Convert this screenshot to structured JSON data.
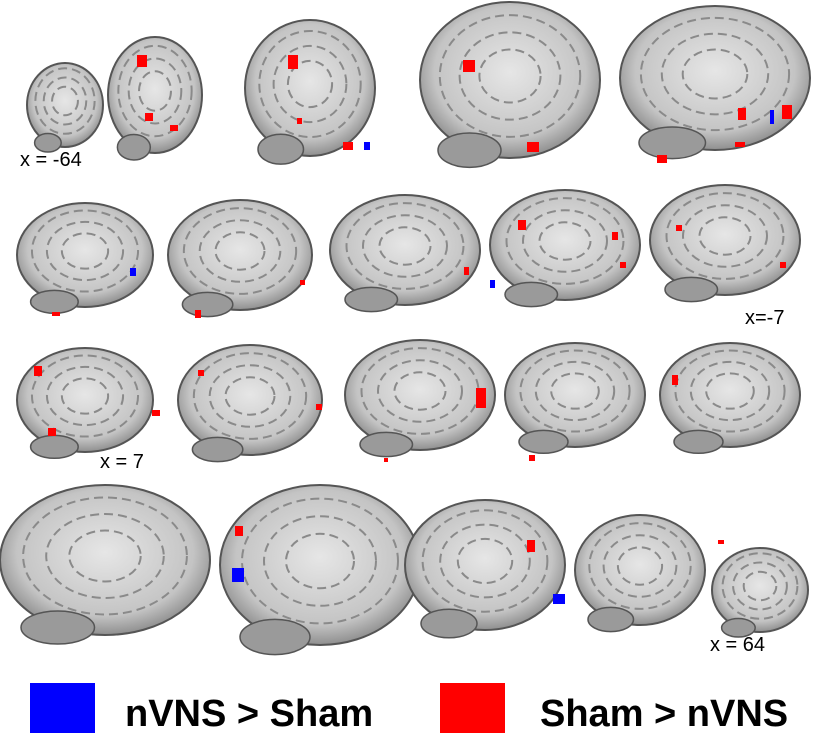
{
  "slice_labels": [
    "x = -64",
    "x=-7",
    "x = 7",
    "x = 64"
  ],
  "legend": [
    {
      "label": "nVNS > Sham",
      "color": "#0000ff"
    },
    {
      "label": "Sham > nVNS",
      "color": "#ff0000"
    }
  ]
}
